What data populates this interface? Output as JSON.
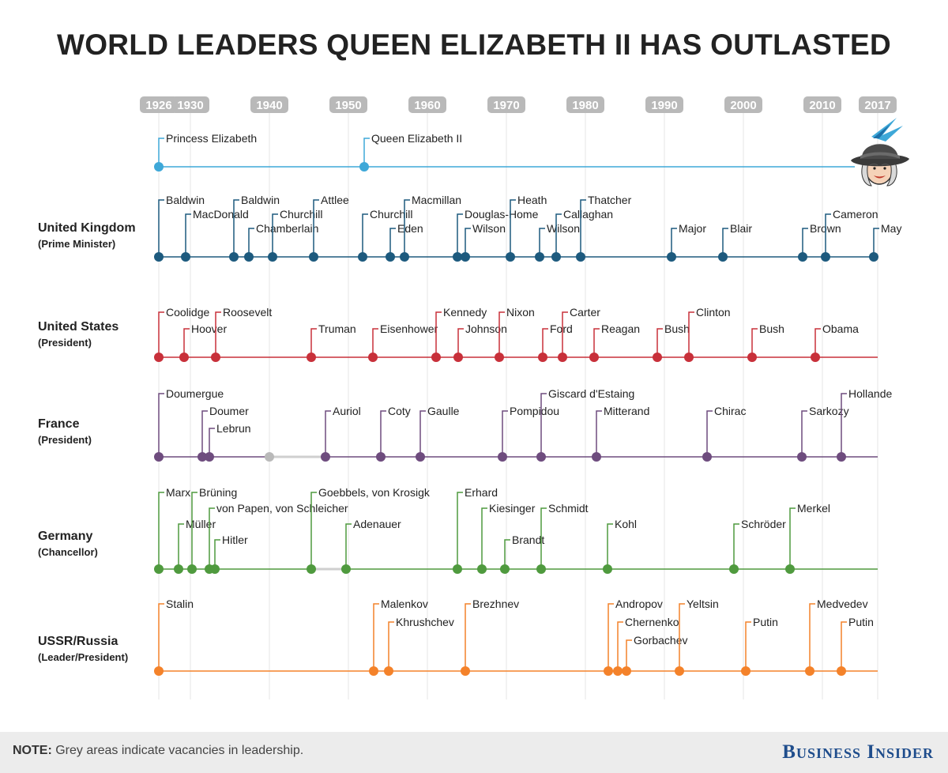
{
  "title": "WORLD LEADERS QUEEN ELIZABETH II HAS OUTLASTED",
  "footer": {
    "note_label": "NOTE:",
    "note_text": " Grey areas indicate vacancies in leadership.",
    "brand": "Business Insider"
  },
  "chart_data": {
    "type": "timeline",
    "title": "WORLD LEADERS QUEEN ELIZABETH II HAS OUTLASTED",
    "x_range": [
      1926,
      2017
    ],
    "ticks": [
      "1926",
      "1930",
      "1940",
      "1950",
      "1960",
      "1970",
      "1980",
      "1990",
      "2000",
      "2010",
      "2017"
    ],
    "tick_years": [
      1926,
      1930,
      1940,
      1950,
      1960,
      1970,
      1980,
      1990,
      2000,
      2010,
      2017
    ],
    "rows": [
      {
        "id": "queen",
        "name": "",
        "sub": "",
        "color": "#3ea8d8",
        "events": [
          {
            "label": "Princess Elizabeth",
            "year": 1926,
            "tier": 0
          },
          {
            "label": "Queen Elizabeth II",
            "year": 1952,
            "tier": 0
          }
        ],
        "gaps": []
      },
      {
        "id": "uk",
        "name": "United Kingdom",
        "sub": "(Prime Minister)",
        "color": "#1d5a7e",
        "events": [
          {
            "label": "Baldwin",
            "year": 1926,
            "tier": 2
          },
          {
            "label": "MacDonald",
            "year": 1929.4,
            "tier": 1
          },
          {
            "label": "Baldwin",
            "year": 1935.5,
            "tier": 2
          },
          {
            "label": "Chamberlain",
            "year": 1937.4,
            "tier": 0
          },
          {
            "label": "Churchill",
            "year": 1940.4,
            "tier": 1
          },
          {
            "label": "Attlee",
            "year": 1945.6,
            "tier": 2
          },
          {
            "label": "Churchill",
            "year": 1951.8,
            "tier": 1
          },
          {
            "label": "Eden",
            "year": 1955.3,
            "tier": 0
          },
          {
            "label": "Macmillan",
            "year": 1957.1,
            "tier": 2
          },
          {
            "label": "Douglas-Home",
            "year": 1963.8,
            "tier": 1
          },
          {
            "label": "Wilson",
            "year": 1964.8,
            "tier": 0
          },
          {
            "label": "Heath",
            "year": 1970.5,
            "tier": 2
          },
          {
            "label": "Wilson",
            "year": 1974.2,
            "tier": 0
          },
          {
            "label": "Callaghan",
            "year": 1976.3,
            "tier": 1
          },
          {
            "label": "Thatcher",
            "year": 1979.4,
            "tier": 2
          },
          {
            "label": "Major",
            "year": 1990.9,
            "tier": 0
          },
          {
            "label": "Blair",
            "year": 1997.4,
            "tier": 0
          },
          {
            "label": "Brown",
            "year": 2007.5,
            "tier": 0
          },
          {
            "label": "Cameron",
            "year": 2010.4,
            "tier": 1
          },
          {
            "label": "May",
            "year": 2016.5,
            "tier": 0
          }
        ],
        "gaps": []
      },
      {
        "id": "us",
        "name": "United States",
        "sub": "(President)",
        "color": "#c8303a",
        "events": [
          {
            "label": "Coolidge",
            "year": 1926,
            "tier": 1
          },
          {
            "label": "Hoover",
            "year": 1929.2,
            "tier": 0
          },
          {
            "label": "Roosevelt",
            "year": 1933.2,
            "tier": 1
          },
          {
            "label": "Truman",
            "year": 1945.3,
            "tier": 0
          },
          {
            "label": "Eisenhower",
            "year": 1953.1,
            "tier": 0
          },
          {
            "label": "Kennedy",
            "year": 1961.1,
            "tier": 1
          },
          {
            "label": "Johnson",
            "year": 1963.9,
            "tier": 0
          },
          {
            "label": "Nixon",
            "year": 1969.1,
            "tier": 1
          },
          {
            "label": "Ford",
            "year": 1974.6,
            "tier": 0
          },
          {
            "label": "Carter",
            "year": 1977.1,
            "tier": 1
          },
          {
            "label": "Reagan",
            "year": 1981.1,
            "tier": 0
          },
          {
            "label": "Bush",
            "year": 1989.1,
            "tier": 0
          },
          {
            "label": "Clinton",
            "year": 1993.1,
            "tier": 1
          },
          {
            "label": "Bush",
            "year": 2001.1,
            "tier": 0
          },
          {
            "label": "Obama",
            "year": 2009.1,
            "tier": 0
          }
        ],
        "gaps": []
      },
      {
        "id": "france",
        "name": "France",
        "sub": "(President)",
        "color": "#6e4c7e",
        "events": [
          {
            "label": "Doumergue",
            "year": 1926,
            "tier": 2
          },
          {
            "label": "Doumer",
            "year": 1931.5,
            "tier": 1
          },
          {
            "label": "Lebrun",
            "year": 1932.4,
            "tier": 0
          },
          {
            "label": "Auriol",
            "year": 1947.1,
            "tier": 1
          },
          {
            "label": "Coty",
            "year": 1954.1,
            "tier": 1
          },
          {
            "label": "Gaulle",
            "year": 1959.1,
            "tier": 1
          },
          {
            "label": "Pompidou",
            "year": 1969.5,
            "tier": 1
          },
          {
            "label": "Giscard d'Estaing",
            "year": 1974.4,
            "tier": 2
          },
          {
            "label": "Mitterand",
            "year": 1981.4,
            "tier": 1
          },
          {
            "label": "Chirac",
            "year": 1995.4,
            "tier": 1
          },
          {
            "label": "Sarkozy",
            "year": 2007.4,
            "tier": 1
          },
          {
            "label": "Hollande",
            "year": 2012.4,
            "tier": 2
          }
        ],
        "gaps": [
          [
            1940,
            1947
          ]
        ]
      },
      {
        "id": "germany",
        "name": "Germany",
        "sub": "(Chancellor)",
        "color": "#4f9a3e",
        "events": [
          {
            "label": "Marx",
            "year": 1926,
            "tier": 3
          },
          {
            "label": "Müller",
            "year": 1928.5,
            "tier": 1
          },
          {
            "label": "Brüning",
            "year": 1930.2,
            "tier": 3
          },
          {
            "label": "von Papen, von Schleicher",
            "year": 1932.4,
            "tier": 2
          },
          {
            "label": "Hitler",
            "year": 1933.1,
            "tier": 0
          },
          {
            "label": "Goebbels, von Krosigk",
            "year": 1945.3,
            "tier": 3
          },
          {
            "label": "Adenauer",
            "year": 1949.7,
            "tier": 1
          },
          {
            "label": "Erhard",
            "year": 1963.8,
            "tier": 3
          },
          {
            "label": "Kiesinger",
            "year": 1966.9,
            "tier": 2
          },
          {
            "label": "Brandt",
            "year": 1969.8,
            "tier": 0
          },
          {
            "label": "Schmidt",
            "year": 1974.4,
            "tier": 2
          },
          {
            "label": "Kohl",
            "year": 1982.8,
            "tier": 1
          },
          {
            "label": "Schröder",
            "year": 1998.8,
            "tier": 1
          },
          {
            "label": "Merkel",
            "year": 2005.9,
            "tier": 2
          }
        ],
        "gaps": [
          [
            1945.5,
            1949.5
          ]
        ]
      },
      {
        "id": "russia",
        "name": "USSR/Russia",
        "sub": "(Leader/President)",
        "color": "#f4822a",
        "events": [
          {
            "label": "Stalin",
            "year": 1926,
            "tier": 2
          },
          {
            "label": "Malenkov",
            "year": 1953.2,
            "tier": 2
          },
          {
            "label": "Khrushchev",
            "year": 1955.1,
            "tier": 1
          },
          {
            "label": "Brezhnev",
            "year": 1964.8,
            "tier": 2
          },
          {
            "label": "Andropov",
            "year": 1982.9,
            "tier": 2
          },
          {
            "label": "Chernenko",
            "year": 1984.1,
            "tier": 1
          },
          {
            "label": "Gorbachev",
            "year": 1985.2,
            "tier": 0
          },
          {
            "label": "Yeltsin",
            "year": 1991.9,
            "tier": 2
          },
          {
            "label": "Putin",
            "year": 2000.3,
            "tier": 1
          },
          {
            "label": "Medvedev",
            "year": 2008.4,
            "tier": 2
          },
          {
            "label": "Putin",
            "year": 2012.4,
            "tier": 1
          }
        ],
        "gaps": []
      }
    ]
  }
}
